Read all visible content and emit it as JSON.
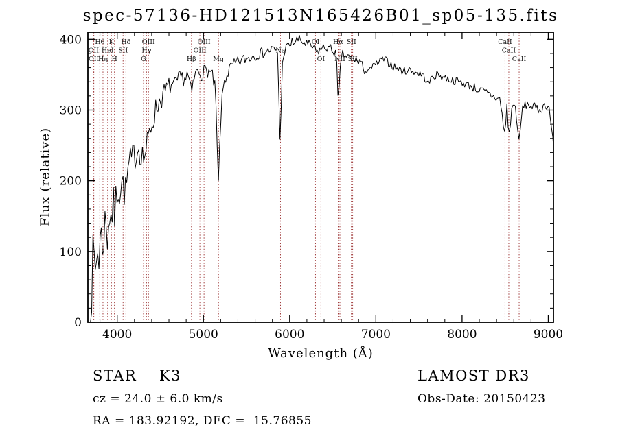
{
  "title": "spec-57136-HD121513N165426B01_sp05-135.fits",
  "footer": {
    "class_label": "STAR    K3",
    "cz": "cz = 24.0 ± 6.0 km/s",
    "ra_dec": "RA = 183.92192, DEC =  15.76855",
    "survey": "LAMOST DR3",
    "obs_date": "Obs-Date: 20150423"
  },
  "chart_data": {
    "type": "line",
    "title": "spec-57136-HD121513N165426B01_sp05-135.fits",
    "xlabel": "Wavelength (Å)",
    "ylabel": "Flux (relative)",
    "xlim": [
      3660,
      9060
    ],
    "ylim": [
      0,
      410
    ],
    "x_ticks": [
      4000,
      5000,
      6000,
      7000,
      8000,
      9000
    ],
    "y_ticks": [
      0,
      100,
      200,
      300,
      400
    ],
    "x_minor_step": 200,
    "y_minor_step": 20,
    "grid": false,
    "series_color": "#000000",
    "marker_color": "#a03c3c",
    "marker_rows": [
      64,
      76.5,
      89
    ],
    "line_markers": [
      {
        "wavelength": 3727,
        "label": "OII",
        "row": 2
      },
      {
        "wavelength": 3729,
        "label": "OII",
        "row": 3
      },
      {
        "wavelength": 3798,
        "label": "Hθ",
        "row": 1
      },
      {
        "wavelength": 3835,
        "label": "Hη",
        "row": 3
      },
      {
        "wavelength": 3889,
        "label": "HeI",
        "row": 2
      },
      {
        "wavelength": 3933,
        "label": "K",
        "row": 1
      },
      {
        "wavelength": 3968,
        "label": "H",
        "row": 3
      },
      {
        "wavelength": 4068,
        "label": "SII",
        "row": 2
      },
      {
        "wavelength": 4101,
        "label": "Hδ",
        "row": 1
      },
      {
        "wavelength": 4305,
        "label": "G",
        "row": 3
      },
      {
        "wavelength": 4340,
        "label": "Hγ",
        "row": 2
      },
      {
        "wavelength": 4363,
        "label": "OIII",
        "row": 1
      },
      {
        "wavelength": 4861,
        "label": "Hβ",
        "row": 3
      },
      {
        "wavelength": 4959,
        "label": "OIII",
        "row": 2
      },
      {
        "wavelength": 5007,
        "label": "OIII",
        "row": 1
      },
      {
        "wavelength": 5175,
        "label": "Mg",
        "row": 3
      },
      {
        "wavelength": 5894,
        "label": "Na",
        "row": 2
      },
      {
        "wavelength": 6300,
        "label": "OI",
        "row": 1
      },
      {
        "wavelength": 6363,
        "label": "OI",
        "row": 3
      },
      {
        "wavelength": 6563,
        "label": "Hα",
        "row": 1
      },
      {
        "wavelength": 6583,
        "label": "NII",
        "row": 3
      },
      {
        "wavelength": 6716,
        "label": "SII",
        "row": 1
      },
      {
        "wavelength": 6731,
        "label": "SII",
        "row": 3
      },
      {
        "wavelength": 8498,
        "label": "CaII",
        "row": 1
      },
      {
        "wavelength": 8542,
        "label": "CaII",
        "row": 2
      },
      {
        "wavelength": 8662,
        "label": "CaII",
        "row": 3
      }
    ],
    "spectrum": [
      [
        3690,
        15,
        25
      ],
      [
        3705,
        55,
        45
      ],
      [
        3725,
        85,
        55
      ],
      [
        3745,
        70,
        55
      ],
      [
        3765,
        105,
        50
      ],
      [
        3785,
        95,
        45
      ],
      [
        3805,
        120,
        45
      ],
      [
        3825,
        110,
        40
      ],
      [
        3845,
        130,
        40
      ],
      [
        3865,
        140,
        38
      ],
      [
        3885,
        125,
        38
      ],
      [
        3905,
        150,
        35
      ],
      [
        3925,
        160,
        32
      ],
      [
        3933,
        135,
        30
      ],
      [
        3950,
        170,
        30
      ],
      [
        3968,
        148,
        30
      ],
      [
        3990,
        180,
        28
      ],
      [
        4010,
        195,
        28
      ],
      [
        4030,
        185,
        28
      ],
      [
        4050,
        200,
        26
      ],
      [
        4070,
        192,
        26
      ],
      [
        4101,
        182,
        26
      ],
      [
        4125,
        215,
        24
      ],
      [
        4155,
        225,
        24
      ],
      [
        4185,
        232,
        24
      ],
      [
        4215,
        240,
        22
      ],
      [
        4245,
        248,
        22
      ],
      [
        4275,
        242,
        22
      ],
      [
        4305,
        232,
        22
      ],
      [
        4340,
        246,
        20
      ],
      [
        4370,
        264,
        20
      ],
      [
        4400,
        280,
        18
      ],
      [
        4430,
        294,
        18
      ],
      [
        4460,
        305,
        17
      ],
      [
        4500,
        315,
        16
      ],
      [
        4540,
        322,
        16
      ],
      [
        4580,
        330,
        15
      ],
      [
        4620,
        336,
        14
      ],
      [
        4660,
        331,
        14
      ],
      [
        4700,
        340,
        13
      ],
      [
        4740,
        346,
        12
      ],
      [
        4780,
        345,
        12
      ],
      [
        4820,
        350,
        12
      ],
      [
        4861,
        322,
        10
      ],
      [
        4900,
        350,
        11
      ],
      [
        4940,
        356,
        10
      ],
      [
        4980,
        351,
        10
      ],
      [
        5020,
        356,
        10
      ],
      [
        5060,
        355,
        10
      ],
      [
        5100,
        349,
        10
      ],
      [
        5140,
        328,
        10
      ],
      [
        5172,
        192,
        6
      ],
      [
        5205,
        298,
        10
      ],
      [
        5235,
        338,
        10
      ],
      [
        5270,
        350,
        10
      ],
      [
        5320,
        360,
        10
      ],
      [
        5380,
        366,
        9
      ],
      [
        5440,
        370,
        9
      ],
      [
        5500,
        373,
        9
      ],
      [
        5560,
        376,
        9
      ],
      [
        5620,
        379,
        8
      ],
      [
        5680,
        381,
        8
      ],
      [
        5740,
        383,
        8
      ],
      [
        5800,
        386,
        8
      ],
      [
        5860,
        381,
        8
      ],
      [
        5890,
        252,
        5
      ],
      [
        5920,
        380,
        8
      ],
      [
        5980,
        390,
        8
      ],
      [
        6040,
        396,
        8
      ],
      [
        6100,
        399,
        8
      ],
      [
        6160,
        396,
        8
      ],
      [
        6220,
        391,
        8
      ],
      [
        6280,
        388,
        7
      ],
      [
        6310,
        381,
        7
      ],
      [
        6360,
        386,
        7
      ],
      [
        6420,
        389,
        7
      ],
      [
        6480,
        386,
        7
      ],
      [
        6540,
        381,
        7
      ],
      [
        6563,
        308,
        5
      ],
      [
        6600,
        379,
        7
      ],
      [
        6660,
        376,
        7
      ],
      [
        6720,
        372,
        7
      ],
      [
        6780,
        370,
        7
      ],
      [
        6840,
        368,
        6
      ],
      [
        6872,
        344,
        5
      ],
      [
        6905,
        362,
        6
      ],
      [
        6960,
        360,
        6
      ],
      [
        7020,
        366,
        6
      ],
      [
        7080,
        372,
        6
      ],
      [
        7140,
        368,
        6
      ],
      [
        7200,
        362,
        6
      ],
      [
        7260,
        358,
        6
      ],
      [
        7320,
        355,
        6
      ],
      [
        7380,
        357,
        6
      ],
      [
        7440,
        355,
        6
      ],
      [
        7500,
        352,
        6
      ],
      [
        7560,
        348,
        6
      ],
      [
        7605,
        336,
        5
      ],
      [
        7660,
        348,
        6
      ],
      [
        7720,
        350,
        6
      ],
      [
        7780,
        347,
        6
      ],
      [
        7840,
        344,
        6
      ],
      [
        7900,
        342,
        6
      ],
      [
        7960,
        340,
        6
      ],
      [
        8020,
        338,
        6
      ],
      [
        8080,
        335,
        6
      ],
      [
        8140,
        332,
        7
      ],
      [
        8200,
        328,
        7
      ],
      [
        8260,
        325,
        7
      ],
      [
        8320,
        322,
        7
      ],
      [
        8380,
        318,
        7
      ],
      [
        8440,
        315,
        7
      ],
      [
        8498,
        262,
        5
      ],
      [
        8520,
        310,
        6
      ],
      [
        8542,
        258,
        5
      ],
      [
        8580,
        307,
        6
      ],
      [
        8620,
        304,
        6
      ],
      [
        8662,
        252,
        5
      ],
      [
        8700,
        304,
        6
      ],
      [
        8760,
        308,
        6
      ],
      [
        8820,
        305,
        7
      ],
      [
        8880,
        300,
        7
      ],
      [
        8940,
        304,
        7
      ],
      [
        8985,
        309,
        8
      ],
      [
        9015,
        300,
        8
      ],
      [
        9040,
        272,
        6
      ],
      [
        9060,
        248,
        5
      ]
    ]
  }
}
